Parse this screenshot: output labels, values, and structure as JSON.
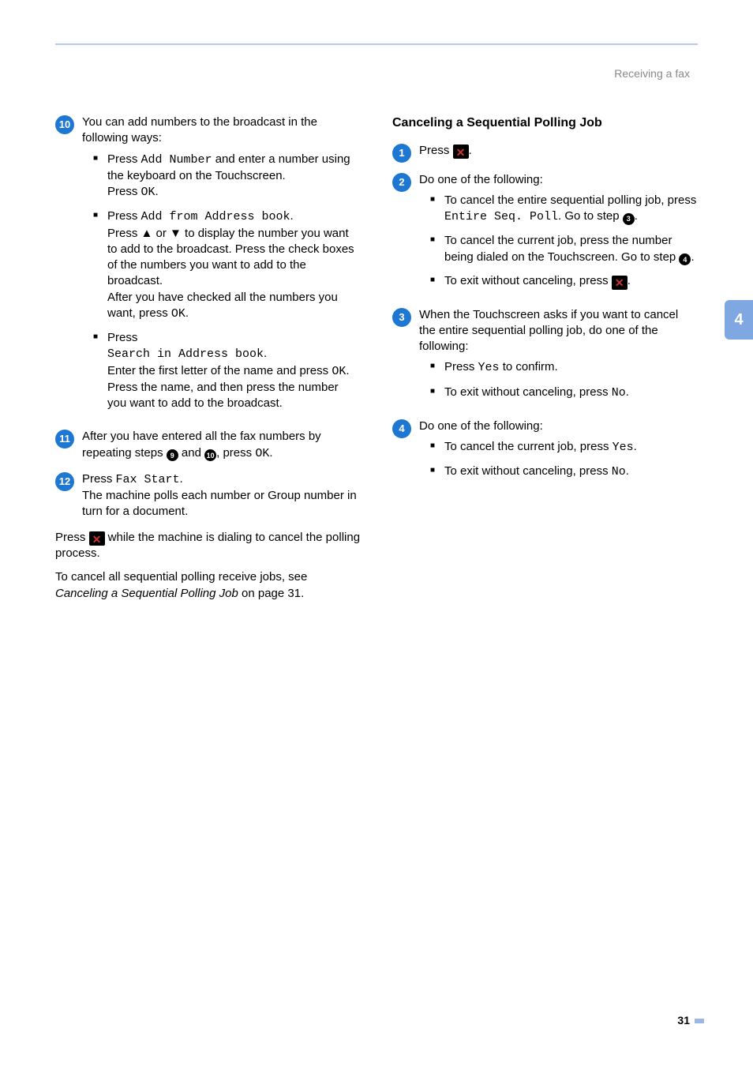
{
  "header": {
    "section_title": "Receiving a fax"
  },
  "side_tab": {
    "label": "4",
    "bg": "#7fa8e3"
  },
  "page_number": "31",
  "colors": {
    "step_blue_bg": "#1e78d2",
    "step_blue_fg": "#ffffff",
    "ref_black_bg": "#000000",
    "ref_black_fg": "#ffffff",
    "x_icon_bg": "#000000",
    "x_icon_fg": "#d33"
  },
  "left": {
    "step10": {
      "num": "10",
      "intro": "You can add numbers to the broadcast in the following ways:",
      "bullets": [
        {
          "t0": "Press ",
          "m0": "Add Number",
          "t1": " and enter a number using the keyboard on the Touchscreen.",
          "t2": "Press ",
          "m2": "OK",
          "t3": "."
        },
        {
          "t0": "Press ",
          "m0": "Add from Address book",
          "t1": ".",
          "t2": "Press ▲ or ▼ to display the number you want to add to the broadcast. Press the check boxes of the numbers you want to add to the broadcast.",
          "t3": "After you have checked all the numbers you want, press ",
          "m3": "OK",
          "t4": "."
        },
        {
          "t0": "Press",
          "m0": "Search in Address book",
          "t1": ".",
          "t2": "Enter the first letter of the name and press ",
          "m2": "OK",
          "t3": ".",
          "t4": "Press the name, and then press the number you want to add to the broadcast."
        }
      ]
    },
    "step11": {
      "num": "11",
      "t0": "After you have entered all the fax numbers by repeating steps ",
      "ref1": "9",
      "t1": " and ",
      "ref2": "10",
      "t2": ", press ",
      "m2": "OK",
      "t3": "."
    },
    "step12": {
      "num": "12",
      "t0": "Press ",
      "m0": "Fax Start",
      "t1": ".",
      "t2": "The machine polls each number or Group number in turn for a document."
    },
    "para1": {
      "t0": "Press ",
      "icon": "X",
      "t1": " while the machine is dialing to cancel the polling process."
    },
    "para2": {
      "t0": "To cancel all sequential polling receive jobs, see ",
      "it": "Canceling a Sequential Polling Job",
      "t1": " on page 31."
    }
  },
  "right": {
    "heading": "Canceling a Sequential Polling Job",
    "step1": {
      "num": "1",
      "t0": "Press ",
      "icon": "X",
      "t1": "."
    },
    "step2": {
      "num": "2",
      "intro": "Do one of the following:",
      "bullets": [
        {
          "t0": "To cancel the entire sequential polling job, press ",
          "m0": "Entire Seq. Poll",
          "t1": ". Go to step ",
          "ref": "3",
          "t2": "."
        },
        {
          "t0": "To cancel the current job, press the number being dialed on the Touchscreen. Go to step ",
          "ref": "4",
          "t1": "."
        },
        {
          "t0": "To exit without canceling, press ",
          "icon": "X",
          "t1": "."
        }
      ]
    },
    "step3": {
      "num": "3",
      "intro": "When the Touchscreen asks if you want to cancel the entire sequential polling job, do one of the following:",
      "bullets": [
        {
          "t0": "Press ",
          "m0": "Yes",
          "t1": " to confirm."
        },
        {
          "t0": "To exit without canceling, press ",
          "m0": "No",
          "t1": "."
        }
      ]
    },
    "step4": {
      "num": "4",
      "intro": "Do one of the following:",
      "bullets": [
        {
          "t0": "To cancel the current job, press ",
          "m0": "Yes",
          "t1": "."
        },
        {
          "t0": "To exit without canceling, press ",
          "m0": "No",
          "t1": "."
        }
      ]
    }
  }
}
